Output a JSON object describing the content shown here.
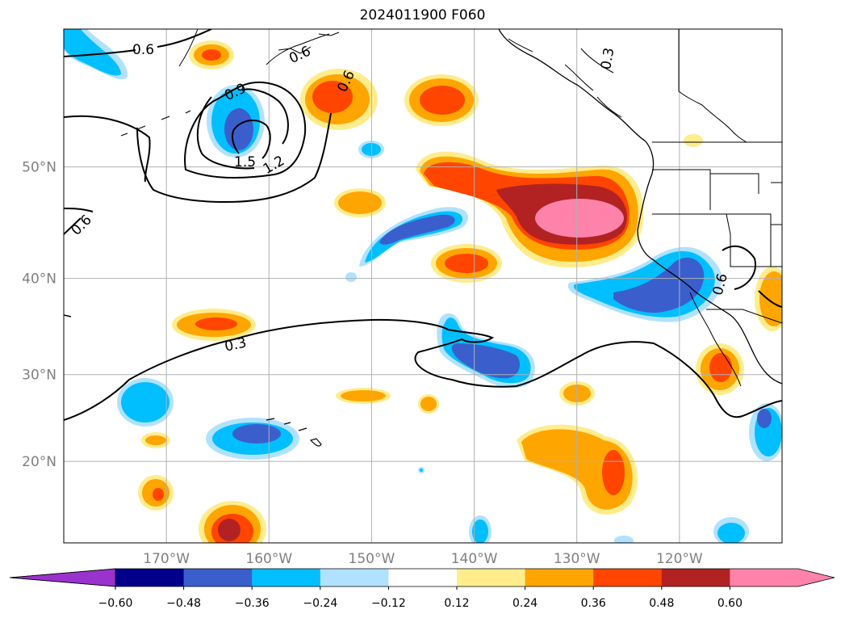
{
  "title": "2024011900 F060",
  "map": {
    "lon_ticks": [
      {
        "value": -170,
        "label": "170°W"
      },
      {
        "value": -160,
        "label": "160°W"
      },
      {
        "value": -150,
        "label": "150°W"
      },
      {
        "value": -140,
        "label": "140°W"
      },
      {
        "value": -130,
        "label": "130°W"
      },
      {
        "value": -120,
        "label": "120°W"
      }
    ],
    "lat_ticks": [
      {
        "value": 20,
        "label": "20°N"
      },
      {
        "value": 30,
        "label": "30°N"
      },
      {
        "value": 40,
        "label": "40°N"
      },
      {
        "value": 50,
        "label": "50°N"
      }
    ],
    "lon_range": [
      -180,
      -110
    ],
    "lat_range": [
      10,
      60
    ],
    "grid": true,
    "contour_labels": [
      "0.6",
      "0.6",
      "0.9",
      "1.5",
      "1.2",
      "0.6",
      "0.3",
      "0.3",
      "0.6",
      "0.6"
    ]
  },
  "colorbar": {
    "labels": [
      "−0.60",
      "−0.48",
      "−0.36",
      "−0.24",
      "−0.12",
      "0.12",
      "0.24",
      "0.36",
      "0.48",
      "0.60"
    ],
    "colors": [
      "#9a32cd",
      "#00008b",
      "#3a5fcd",
      "#00bfff",
      "#b0e2ff",
      "#ffffff",
      "#ffec8b",
      "#ffa500",
      "#ff4500",
      "#b22222",
      "#ff82ab",
      "#ff82ab"
    ],
    "extend": "both"
  }
}
